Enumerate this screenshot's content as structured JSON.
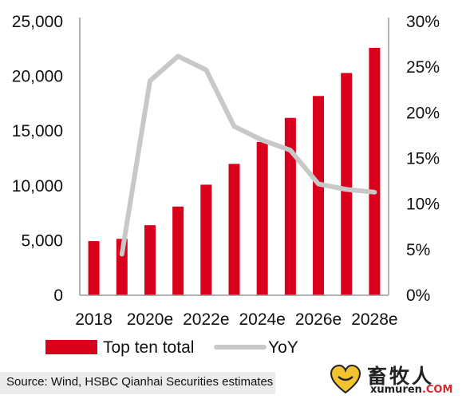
{
  "chart_data": {
    "type": "bar+line",
    "categories": [
      "2018",
      "2019",
      "2020e",
      "2021e",
      "2022e",
      "2023e",
      "2024e",
      "2025e",
      "2026e",
      "2027e",
      "2028e"
    ],
    "x_tick_labels": [
      "2018",
      "2020e",
      "2022e",
      "2024e",
      "2026e",
      "2028e"
    ],
    "series": [
      {
        "name": "Top ten total",
        "kind": "bar",
        "axis": "left",
        "color": "#d9001b",
        "values": [
          4950,
          5150,
          6400,
          8100,
          10100,
          12000,
          14000,
          16200,
          18200,
          20300,
          22600
        ]
      },
      {
        "name": "YoY",
        "kind": "line",
        "axis": "right",
        "color": "#c8c8c8",
        "values": [
          null,
          4.5,
          23.5,
          26.2,
          24.7,
          18.5,
          17.0,
          15.9,
          12.2,
          11.6,
          11.3
        ]
      }
    ],
    "y_left": {
      "min": 0,
      "max": 25000,
      "ticks": [
        "0",
        "5,000",
        "10,000",
        "15,000",
        "20,000",
        "25,000"
      ]
    },
    "y_right": {
      "min": 0,
      "max": 30,
      "ticks": [
        "0%",
        "5%",
        "10%",
        "15%",
        "20%",
        "25%",
        "30%"
      ]
    },
    "grid": false,
    "legend_position": "bottom"
  },
  "source": "Source: Wind, HSBC Qianhai Securities estimates",
  "watermark": {
    "chinese": "畜牧人",
    "latin_main": "xumuren",
    "latin_suffix": ".COM"
  }
}
